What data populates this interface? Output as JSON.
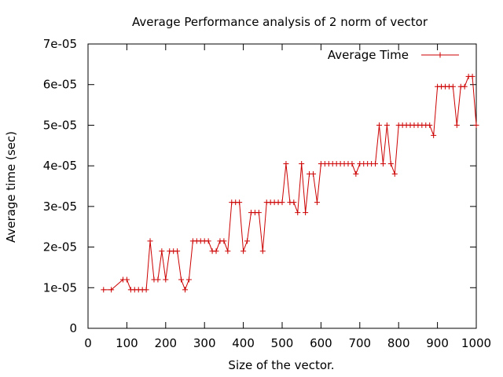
{
  "chart_data": {
    "type": "line",
    "title": "Average Performance analysis of 2 norm of vector",
    "xlabel": "Size of the vector.",
    "ylabel": "Average time (sec)",
    "xlim": [
      0,
      1000
    ],
    "ylim": [
      0,
      7e-05
    ],
    "xticks": [
      "0",
      "100",
      "200",
      "300",
      "400",
      "500",
      "600",
      "700",
      "800",
      "900",
      "1000"
    ],
    "yticks": [
      "0",
      "1e-05",
      "2e-05",
      "3e-05",
      "4e-05",
      "5e-05",
      "6e-05",
      "7e-05"
    ],
    "grid": false,
    "legend_position": "top-right",
    "line_color": "#cc0000",
    "series": [
      {
        "name": "Average Time",
        "x": [
          40,
          60,
          90,
          100,
          110,
          120,
          130,
          140,
          150,
          160,
          170,
          180,
          190,
          200,
          210,
          220,
          230,
          240,
          250,
          260,
          270,
          280,
          290,
          300,
          310,
          320,
          330,
          340,
          350,
          360,
          370,
          380,
          390,
          400,
          410,
          420,
          430,
          440,
          450,
          460,
          470,
          480,
          490,
          500,
          510,
          520,
          530,
          540,
          550,
          560,
          570,
          580,
          590,
          600,
          610,
          620,
          630,
          640,
          650,
          660,
          670,
          680,
          690,
          700,
          710,
          720,
          730,
          740,
          750,
          760,
          770,
          780,
          790,
          800,
          810,
          820,
          830,
          840,
          850,
          860,
          870,
          880,
          890,
          900,
          910,
          920,
          930,
          940,
          950,
          960,
          970,
          980,
          990,
          1000
        ],
        "y": [
          9.5e-06,
          9.5e-06,
          1.2e-05,
          1.2e-05,
          9.5e-06,
          9.5e-06,
          9.5e-06,
          9.5e-06,
          9.5e-06,
          2.15e-05,
          1.2e-05,
          1.2e-05,
          1.9e-05,
          1.2e-05,
          1.9e-05,
          1.9e-05,
          1.9e-05,
          1.2e-05,
          9.5e-06,
          1.2e-05,
          2.15e-05,
          2.15e-05,
          2.15e-05,
          2.15e-05,
          2.15e-05,
          1.9e-05,
          1.9e-05,
          2.15e-05,
          2.15e-05,
          1.9e-05,
          3.1e-05,
          3.1e-05,
          3.1e-05,
          1.9e-05,
          2.15e-05,
          2.85e-05,
          2.85e-05,
          2.85e-05,
          1.9e-05,
          3.1e-05,
          3.1e-05,
          3.1e-05,
          3.1e-05,
          3.1e-05,
          4.05e-05,
          3.1e-05,
          3.1e-05,
          2.85e-05,
          4.05e-05,
          2.85e-05,
          3.8e-05,
          3.8e-05,
          3.1e-05,
          4.05e-05,
          4.05e-05,
          4.05e-05,
          4.05e-05,
          4.05e-05,
          4.05e-05,
          4.05e-05,
          4.05e-05,
          4.05e-05,
          3.8e-05,
          4.05e-05,
          4.05e-05,
          4.05e-05,
          4.05e-05,
          4.05e-05,
          5e-05,
          4.05e-05,
          5e-05,
          4.05e-05,
          3.8e-05,
          5e-05,
          5e-05,
          5e-05,
          5e-05,
          5e-05,
          5e-05,
          5e-05,
          5e-05,
          5e-05,
          4.75e-05,
          5.95e-05,
          5.95e-05,
          5.95e-05,
          5.95e-05,
          5.95e-05,
          5e-05,
          5.95e-05,
          5.95e-05,
          6.2e-05,
          6.2e-05,
          5e-05
        ]
      }
    ]
  }
}
